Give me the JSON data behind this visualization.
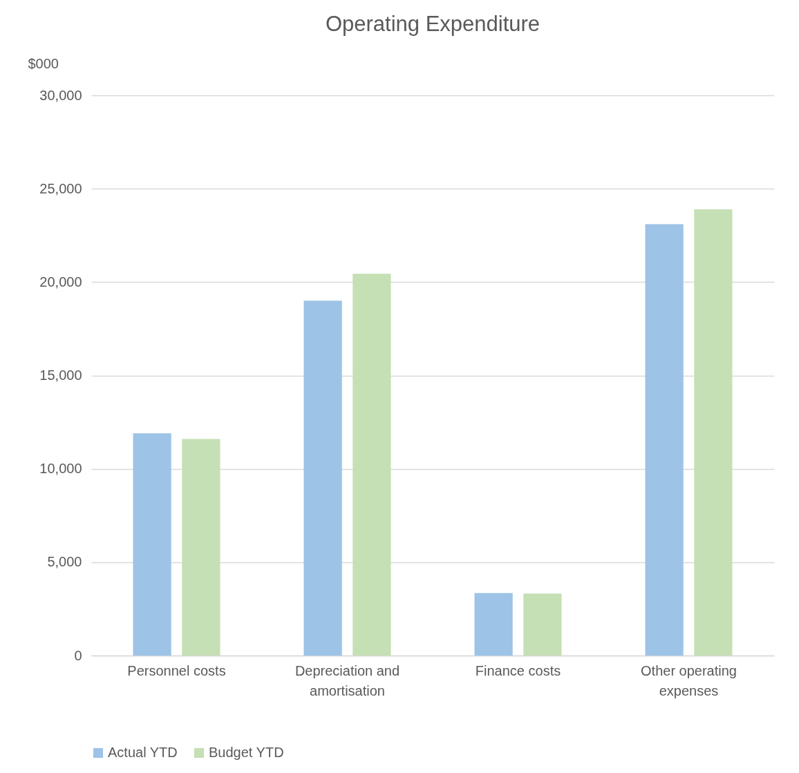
{
  "chart_data": {
    "type": "bar",
    "title": "Operating Expenditure",
    "ylabel": "$000",
    "categories": [
      "Personnel costs",
      "Depreciation and amortisation",
      "Finance costs",
      "Other operating expenses"
    ],
    "series": [
      {
        "name": "Actual YTD",
        "color": "#9dc3e6",
        "values": [
          11900,
          19000,
          3350,
          23100
        ]
      },
      {
        "name": "Budget YTD",
        "color": "#c5e0b4",
        "values": [
          11600,
          20450,
          3320,
          23900
        ]
      }
    ],
    "ylim": [
      0,
      30000
    ],
    "yticks": [
      0,
      {
        "value": 5000,
        "label": "5,000"
      },
      {
        "value": 10000,
        "label": "10,000"
      },
      {
        "value": 15000,
        "label": "15,000"
      },
      {
        "value": 20000,
        "label": "20,000"
      },
      {
        "value": 25000,
        "label": "25,000"
      },
      {
        "value": 30000,
        "label": "30,000"
      }
    ],
    "grid": "y",
    "legend": "bottom"
  }
}
